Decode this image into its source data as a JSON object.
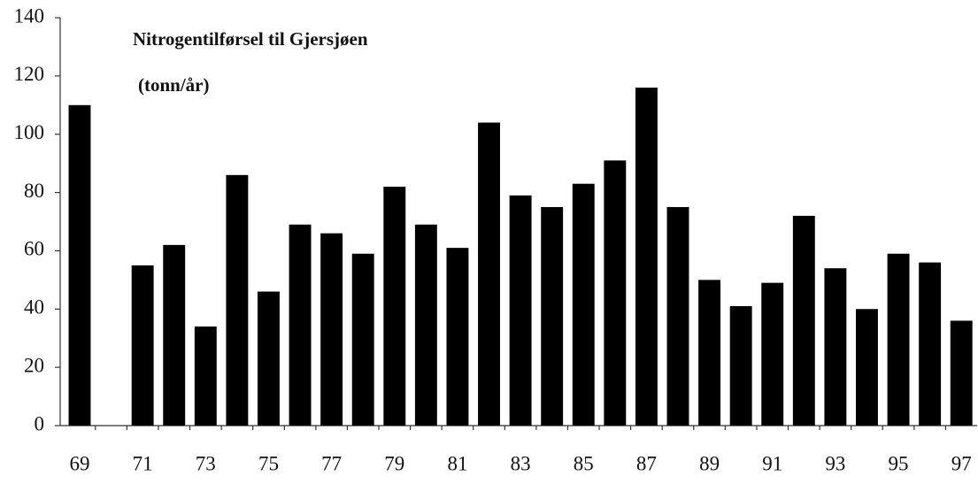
{
  "chart_data": {
    "type": "bar",
    "title": "Nitrogentilførsel til Gjersjøen",
    "subtitle": "(tonn/år)",
    "categories": [
      "69",
      null,
      "71",
      null,
      "73",
      null,
      "75",
      null,
      "77",
      null,
      "79",
      null,
      "81",
      null,
      "83",
      null,
      "85",
      null,
      "87",
      null,
      "89",
      null,
      "91",
      null,
      "93",
      null,
      "95",
      null,
      "97"
    ],
    "values": [
      110,
      null,
      55,
      62,
      34,
      86,
      46,
      69,
      66,
      59,
      82,
      69,
      61,
      104,
      79,
      75,
      83,
      91,
      116,
      75,
      50,
      41,
      49,
      72,
      54,
      40,
      59,
      56,
      36
    ],
    "color": "#000000",
    "ylim": [
      0,
      140
    ],
    "yticks": [
      0,
      20,
      40,
      60,
      80,
      100,
      120,
      140
    ],
    "grid": false
  }
}
